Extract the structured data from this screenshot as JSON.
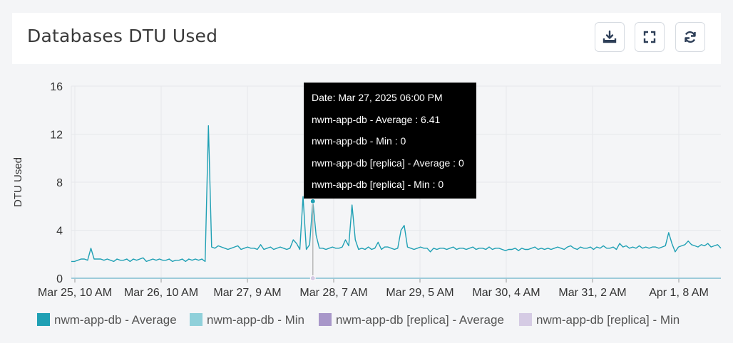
{
  "header": {
    "title": "Databases DTU Used",
    "buttons": [
      {
        "name": "download",
        "icon": "download-icon"
      },
      {
        "name": "fullscreen",
        "icon": "fullscreen-icon"
      },
      {
        "name": "refresh",
        "icon": "refresh-icon"
      }
    ]
  },
  "tooltip": {
    "date": "Date: Mar 27, 2025 06:00 PM",
    "lines": [
      "nwm-app-db - Average : 6.41",
      "nwm-app-db - Min : 0",
      "nwm-app-db [replica] - Average : 0",
      "nwm-app-db [replica] - Min : 0"
    ]
  },
  "chart_data": {
    "type": "line",
    "title": "",
    "xlabel": "",
    "ylabel": "DTU Used",
    "ylim": [
      0,
      16
    ],
    "yticks": [
      0,
      4,
      8,
      12,
      16
    ],
    "xticks": [
      "Mar 25, 10 AM",
      "Mar 26, 10 AM",
      "Mar 27, 9 AM",
      "Mar 28, 7 AM",
      "Mar 29, 5 AM",
      "Mar 30, 4 AM",
      "Mar 31, 2 AM",
      "Apr 1, 8 AM"
    ],
    "grid": true,
    "legend_position": "bottom",
    "colors": {
      "nwm-app-db - Average": "#1fa0b4",
      "nwm-app-db - Min": "#8fd0da",
      "nwm-app-db [replica] - Average": "#a897c9",
      "nwm-app-db [replica] - Min": "#d5cbe4"
    },
    "series": [
      {
        "name": "nwm-app-db - Average",
        "values": [
          1.4,
          1.4,
          1.5,
          1.6,
          1.6,
          1.5,
          2.5,
          1.6,
          1.6,
          1.6,
          1.5,
          1.6,
          1.5,
          1.4,
          1.6,
          1.5,
          1.5,
          1.6,
          1.4,
          1.6,
          1.5,
          1.6,
          1.7,
          1.4,
          1.5,
          1.6,
          1.5,
          1.6,
          1.5,
          1.5,
          1.6,
          1.4,
          1.5,
          1.5,
          1.6,
          1.4,
          1.6,
          1.5,
          1.6,
          1.5,
          1.6,
          1.4,
          12.7,
          2.6,
          2.5,
          2.7,
          2.6,
          2.5,
          2.4,
          2.5,
          2.6,
          2.7,
          2.4,
          2.5,
          2.6,
          2.5,
          2.5,
          2.4,
          2.8,
          2.4,
          2.5,
          2.6,
          2.4,
          2.5,
          2.6,
          2.5,
          2.4,
          2.5,
          3.2,
          2.9,
          2.4,
          6.8,
          2.4,
          2.8,
          6.41,
          3.6,
          2.5,
          2.5,
          2.4,
          2.5,
          2.6,
          2.5,
          2.5,
          2.6,
          3.2,
          2.7,
          6.1,
          3.2,
          2.4,
          2.5,
          2.4,
          2.6,
          2.4,
          2.5,
          3.0,
          2.4,
          2.6,
          2.6,
          2.5,
          2.4,
          2.5,
          4.0,
          4.4,
          2.6,
          2.5,
          2.4,
          2.5,
          2.6,
          2.5,
          2.5,
          2.2,
          2.5,
          2.4,
          2.5,
          2.5,
          2.4,
          2.5,
          2.6,
          2.4,
          2.5,
          2.5,
          2.4,
          2.5,
          2.6,
          2.4,
          2.5,
          2.5,
          2.4,
          2.6,
          2.4,
          2.5,
          2.5,
          2.4,
          2.3,
          2.4,
          2.4,
          2.5,
          2.3,
          2.5,
          2.4,
          2.4,
          2.5,
          2.6,
          2.4,
          2.5,
          2.4,
          2.5,
          2.4,
          2.5,
          2.6,
          2.5,
          2.4,
          2.6,
          2.7,
          2.5,
          2.4,
          2.6,
          2.5,
          2.5,
          2.6,
          2.4,
          2.6,
          2.5,
          2.7,
          2.5,
          2.5,
          2.6,
          2.4,
          2.9,
          2.6,
          2.7,
          2.5,
          2.6,
          2.5,
          2.7,
          2.5,
          2.6,
          2.5,
          2.6,
          2.6,
          2.5,
          2.6,
          2.7,
          3.8,
          2.9,
          2.2,
          2.6,
          2.7,
          2.8,
          3.1,
          2.8,
          2.7,
          2.6,
          2.8,
          2.7,
          2.9,
          2.6,
          2.7,
          2.8,
          2.5
        ]
      },
      {
        "name": "nwm-app-db - Min",
        "values": "constant 0"
      },
      {
        "name": "nwm-app-db [replica] - Average",
        "values": "constant 0"
      },
      {
        "name": "nwm-app-db [replica] - Min",
        "values": "constant 0"
      }
    ],
    "hover_index": 74
  }
}
